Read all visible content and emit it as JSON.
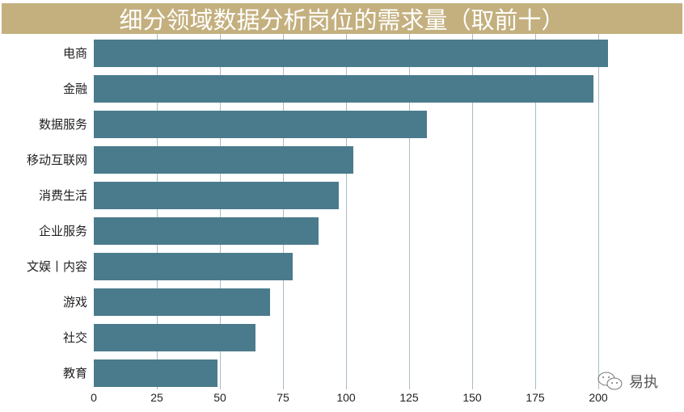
{
  "title": "细分领域数据分析岗位的需求量（取前十）",
  "colors": {
    "title_bg": "#c4b07f",
    "bar": "#4a7b8c",
    "grid": "#a9bcc6"
  },
  "watermark": {
    "icon": "wechat-icon",
    "text": "易执"
  },
  "chart_data": {
    "type": "bar",
    "orientation": "horizontal",
    "title": "细分领域数据分析岗位的需求量（取前十）",
    "categories": [
      "电商",
      "金融",
      "数据服务",
      "移动互联网",
      "消费生活",
      "企业服务",
      "文娱丨内容",
      "游戏",
      "社交",
      "教育"
    ],
    "values": [
      204,
      198,
      132,
      103,
      97,
      89,
      79,
      70,
      64,
      49
    ],
    "xlabel": "",
    "ylabel": "",
    "xlim": [
      0,
      210
    ],
    "xticks": [
      0,
      25,
      50,
      75,
      100,
      125,
      150,
      175,
      200
    ],
    "grid": "vertical",
    "legend": "none"
  }
}
